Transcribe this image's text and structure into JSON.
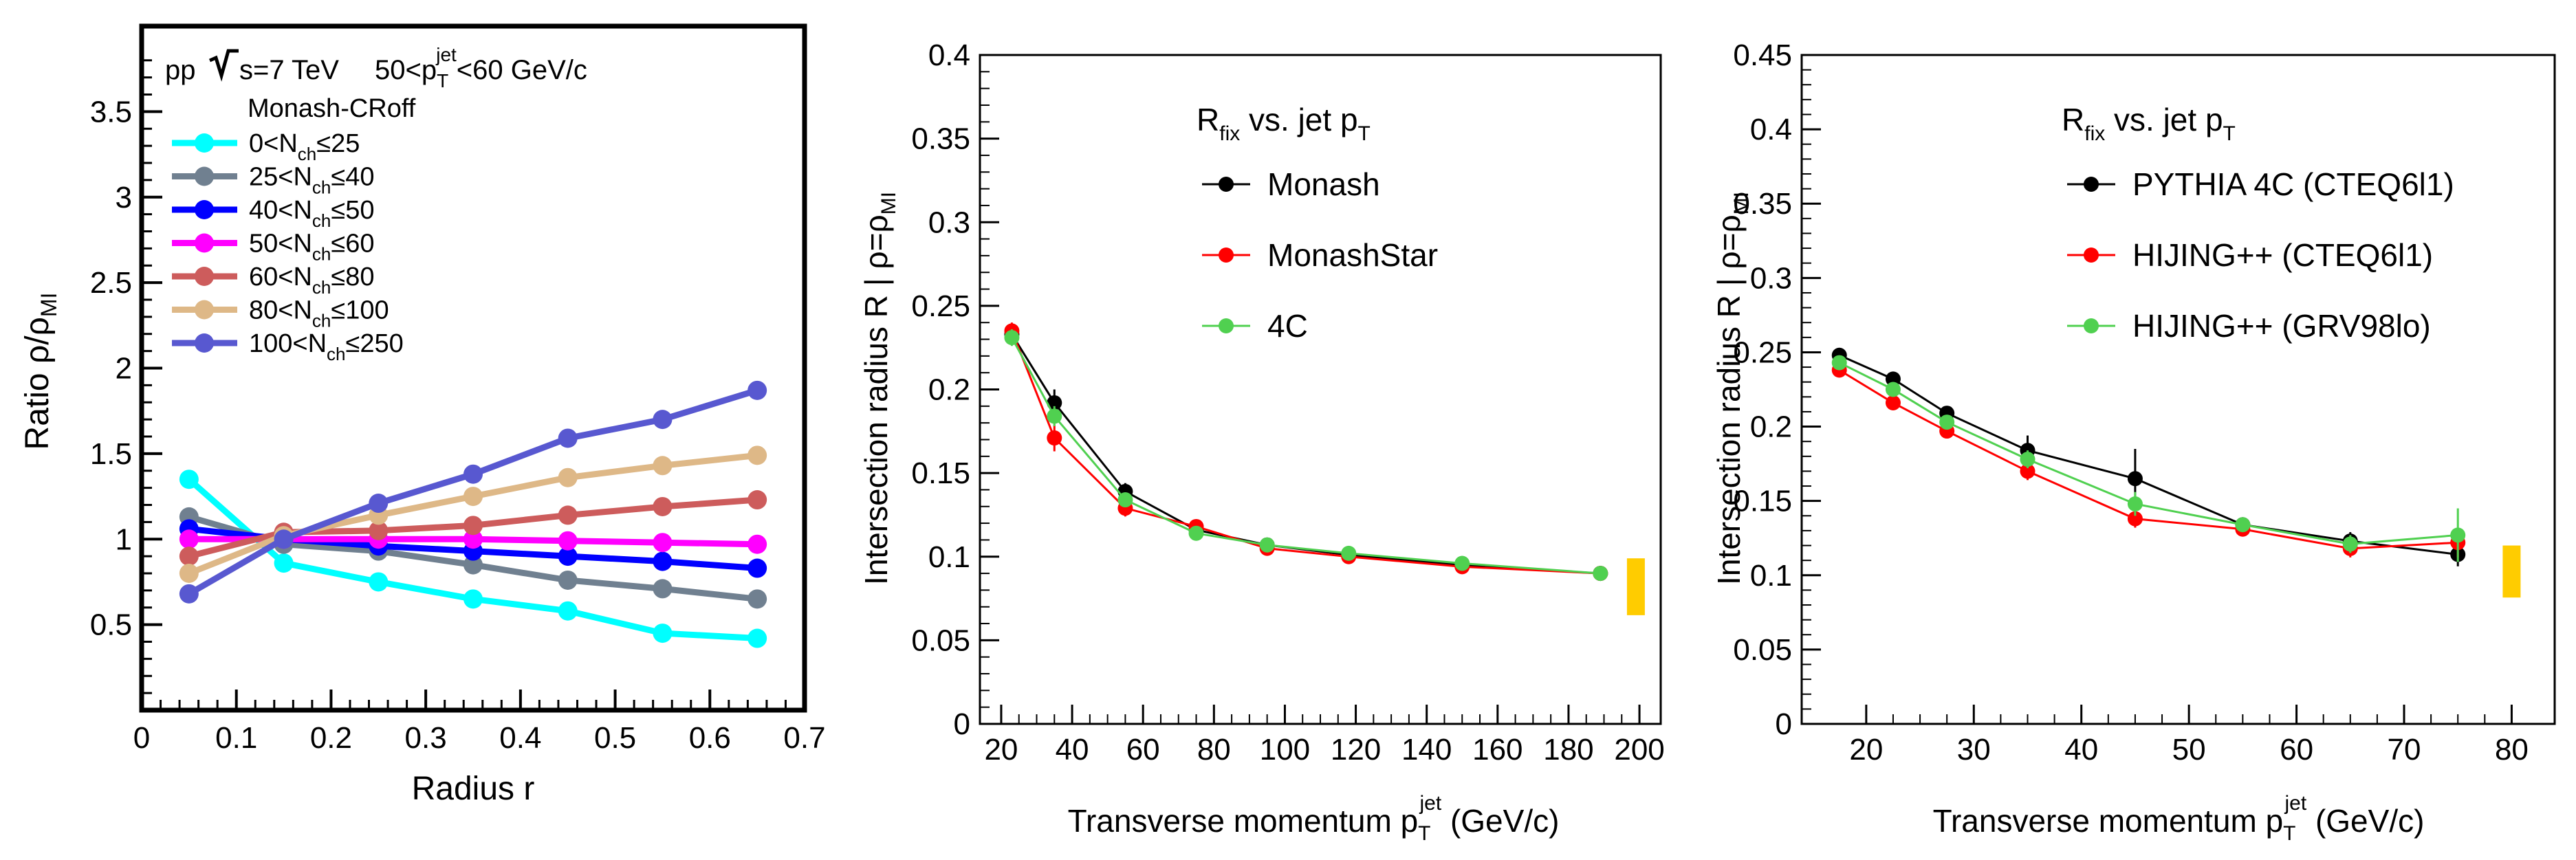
{
  "chart_data": [
    {
      "type": "line",
      "title": "",
      "header": {
        "collision": "pp",
        "energy": "s=7 TeV",
        "jet_range_pre": "50<p",
        "jet_range_sub": "T",
        "jet_range_sup": "jet",
        "jet_range_post": "<60 GeV/c"
      },
      "legend_title": "Monash-CRoff",
      "xlabel": "Radius r",
      "ylabel": "Ratio ρ/ρ",
      "ylabel_sub": "MI",
      "xlim": [
        0,
        0.7
      ],
      "ylim": [
        0,
        4.0
      ],
      "xticks": [
        "0",
        "0.1",
        "0.2",
        "0.3",
        "0.4",
        "0.5",
        "0.6",
        "0.7"
      ],
      "yticks": [
        "0.5",
        "1",
        "1.5",
        "2",
        "2.5",
        "3",
        "3.5"
      ],
      "x": [
        0.05,
        0.15,
        0.25,
        0.35,
        0.45,
        0.55,
        0.65
      ],
      "series": [
        {
          "name_pre": "0<N",
          "name_sub": "ch",
          "name_post": "≤25",
          "color": "#00ffff",
          "values": [
            1.35,
            0.86,
            0.75,
            0.65,
            0.58,
            0.45,
            0.42
          ]
        },
        {
          "name_pre": "25<N",
          "name_sub": "ch",
          "name_post": "≤40",
          "color": "#708090",
          "values": [
            1.13,
            0.97,
            0.93,
            0.85,
            0.76,
            0.71,
            0.65
          ]
        },
        {
          "name_pre": "40<N",
          "name_sub": "ch",
          "name_post": "≤50",
          "color": "#0000ff",
          "values": [
            1.06,
            1.0,
            0.96,
            0.93,
            0.9,
            0.87,
            0.83
          ]
        },
        {
          "name_pre": "50<N",
          "name_sub": "ch",
          "name_post": "≤60",
          "color": "#ff00ff",
          "values": [
            1.0,
            1.0,
            1.0,
            1.0,
            0.99,
            0.98,
            0.97
          ]
        },
        {
          "name_pre": "60<N",
          "name_sub": "ch",
          "name_post": "≤80",
          "color": "#cd5c5c",
          "values": [
            0.9,
            1.04,
            1.05,
            1.08,
            1.14,
            1.19,
            1.23
          ]
        },
        {
          "name_pre": "80<N",
          "name_sub": "ch",
          "name_post": "≤100",
          "color": "#deb887",
          "values": [
            0.8,
            1.02,
            1.14,
            1.25,
            1.36,
            1.43,
            1.49
          ]
        },
        {
          "name_pre": "100<N",
          "name_sub": "ch",
          "name_post": "≤250",
          "color": "#5858d0",
          "values": [
            0.68,
            1.0,
            1.21,
            1.38,
            1.59,
            1.7,
            1.87
          ]
        }
      ]
    },
    {
      "type": "line",
      "title_pre": "R",
      "title_sub": "fix",
      "title_post": " vs. jet p",
      "title_sub2": "T",
      "xlabel": "Transverse momentum p",
      "xlabel_sub": "T",
      "xlabel_sup": "jet",
      "xlabel_post": " (GeV/c)",
      "ylabel": "Intersection radius R | ρ=ρ",
      "ylabel_sub": "MI",
      "xlim": [
        14,
        206
      ],
      "ylim": [
        0,
        0.4
      ],
      "xticks": [
        20,
        40,
        60,
        80,
        100,
        120,
        140,
        160,
        180,
        200
      ],
      "yticks": [
        "0",
        "0.05",
        "0.1",
        "0.15",
        "0.2",
        "0.25",
        "0.3",
        "0.35",
        "0.4"
      ],
      "series": [
        {
          "name": "Monash",
          "color": "#000000",
          "x": [
            23,
            35,
            55,
            75,
            95,
            118,
            150,
            189
          ],
          "values": [
            0.233,
            0.192,
            0.139,
            0.116,
            0.107,
            0.101,
            0.095,
            0.09
          ],
          "errors": [
            0.005,
            0.008,
            0.005,
            0.003,
            0.003,
            0.003,
            0.002,
            0.002
          ]
        },
        {
          "name": "MonashStar",
          "color": "#ff0000",
          "x": [
            23,
            35,
            55,
            75,
            95,
            118,
            150,
            189
          ],
          "values": [
            0.235,
            0.171,
            0.129,
            0.118,
            0.105,
            0.1,
            0.094,
            0.09
          ],
          "errors": [
            0.005,
            0.008,
            0.005,
            0.003,
            0.003,
            0.003,
            0.002,
            0.002
          ]
        },
        {
          "name": "4C",
          "color": "#50d050",
          "x": [
            23,
            35,
            55,
            75,
            95,
            118,
            150,
            189
          ],
          "values": [
            0.231,
            0.184,
            0.134,
            0.114,
            0.107,
            0.102,
            0.096,
            0.09
          ],
          "errors": [
            0.005,
            0.006,
            0.004,
            0.003,
            0.003,
            0.003,
            0.002,
            0.002
          ]
        }
      ],
      "band": {
        "x": 199,
        "low": 0.065,
        "high": 0.099,
        "color": "#ffcc00"
      }
    },
    {
      "type": "line",
      "title_pre": "R",
      "title_sub": "fix",
      "title_post": " vs. jet p",
      "title_sub2": "T",
      "xlabel": "Transverse momentum p",
      "xlabel_sub": "T",
      "xlabel_sup": "jet",
      "xlabel_post": " (GeV/c)",
      "ylabel": "Intersection radius R | ρ=ρ",
      "ylabel_sub": "MI",
      "xlim": [
        14,
        84
      ],
      "ylim": [
        0,
        0.45
      ],
      "xticks": [
        20,
        30,
        40,
        50,
        60,
        70,
        80
      ],
      "yticks": [
        "0",
        "0.05",
        "0.1",
        "0.15",
        "0.2",
        "0.25",
        "0.3",
        "0.35",
        "0.4",
        "0.45"
      ],
      "series": [
        {
          "name": "PYTHIA 4C (CTEQ6l1)",
          "color": "#000000",
          "x": [
            17.5,
            22.5,
            27.5,
            35,
            45,
            55,
            65,
            75
          ],
          "values": [
            0.248,
            0.232,
            0.209,
            0.184,
            0.165,
            0.134,
            0.123,
            0.114
          ],
          "errors": [
            0.004,
            0.004,
            0.004,
            0.01,
            0.02,
            0.004,
            0.006,
            0.008
          ]
        },
        {
          "name": "HIJING++ (CTEQ6l1)",
          "color": "#ff0000",
          "x": [
            17.5,
            22.5,
            27.5,
            35,
            45,
            55,
            65,
            75
          ],
          "values": [
            0.238,
            0.216,
            0.197,
            0.17,
            0.138,
            0.131,
            0.118,
            0.122
          ],
          "errors": [
            0.004,
            0.004,
            0.004,
            0.006,
            0.006,
            0.004,
            0.006,
            0.01
          ]
        },
        {
          "name": "HIJING++ (GRV98lo)",
          "color": "#50d050",
          "x": [
            17.5,
            22.5,
            27.5,
            35,
            45,
            55,
            65,
            75
          ],
          "values": [
            0.243,
            0.225,
            0.203,
            0.178,
            0.148,
            0.134,
            0.121,
            0.127
          ],
          "errors": [
            0.004,
            0.004,
            0.004,
            0.006,
            0.008,
            0.004,
            0.006,
            0.018
          ]
        }
      ],
      "band": {
        "x": 80,
        "low": 0.085,
        "high": 0.12,
        "color": "#ffcc00"
      }
    }
  ]
}
